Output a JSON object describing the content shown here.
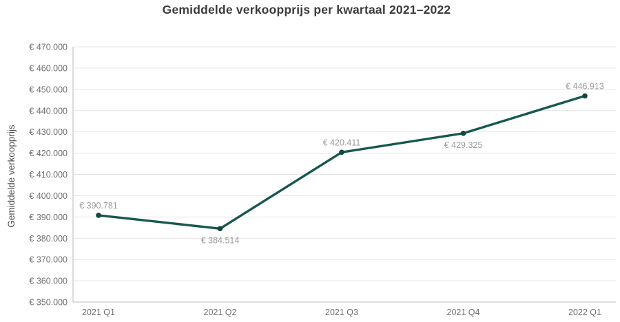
{
  "chart_data": {
    "type": "line",
    "title": "Gemiddelde verkoopprijs per kwartaal 2021–2022",
    "ylabel": "Gemiddelde verkoopprijs",
    "xlabel": "",
    "categories": [
      "2021 Q1",
      "2021 Q2",
      "2021 Q3",
      "2021 Q4",
      "2022 Q1"
    ],
    "series": [
      {
        "name": "Gemiddelde verkoopprijs",
        "values": [
          390781,
          384514,
          420411,
          429325,
          446913
        ]
      }
    ],
    "point_labels": [
      "€ 390.781",
      "€ 384.514",
      "€ 420.411",
      "€ 429.325",
      "€ 446.913"
    ],
    "point_label_positions": [
      "above",
      "below",
      "above",
      "below",
      "above"
    ],
    "ylim": [
      350000,
      470000
    ],
    "ytick_step": 10000,
    "ytick_labels": [
      "€ 350.000",
      "€ 360.000",
      "€ 370.000",
      "€ 380.000",
      "€ 390.000",
      "€ 400.000",
      "€ 410.000",
      "€ 420.000",
      "€ 430.000",
      "€ 440.000",
      "€ 450.000",
      "€ 460.000",
      "€ 470.000"
    ],
    "grid": true,
    "legend": "none",
    "colors": {
      "background": "#ffffff",
      "line": "#16584f",
      "marker": "#0f4840",
      "grid": "#e4e4e4",
      "axis": "#c6c6c6",
      "tick_text": "#6f6f6f",
      "point_label_text": "#9b9b9b",
      "title_text": "#3c3c3c",
      "axis_title_text": "#4f4f4f"
    }
  }
}
